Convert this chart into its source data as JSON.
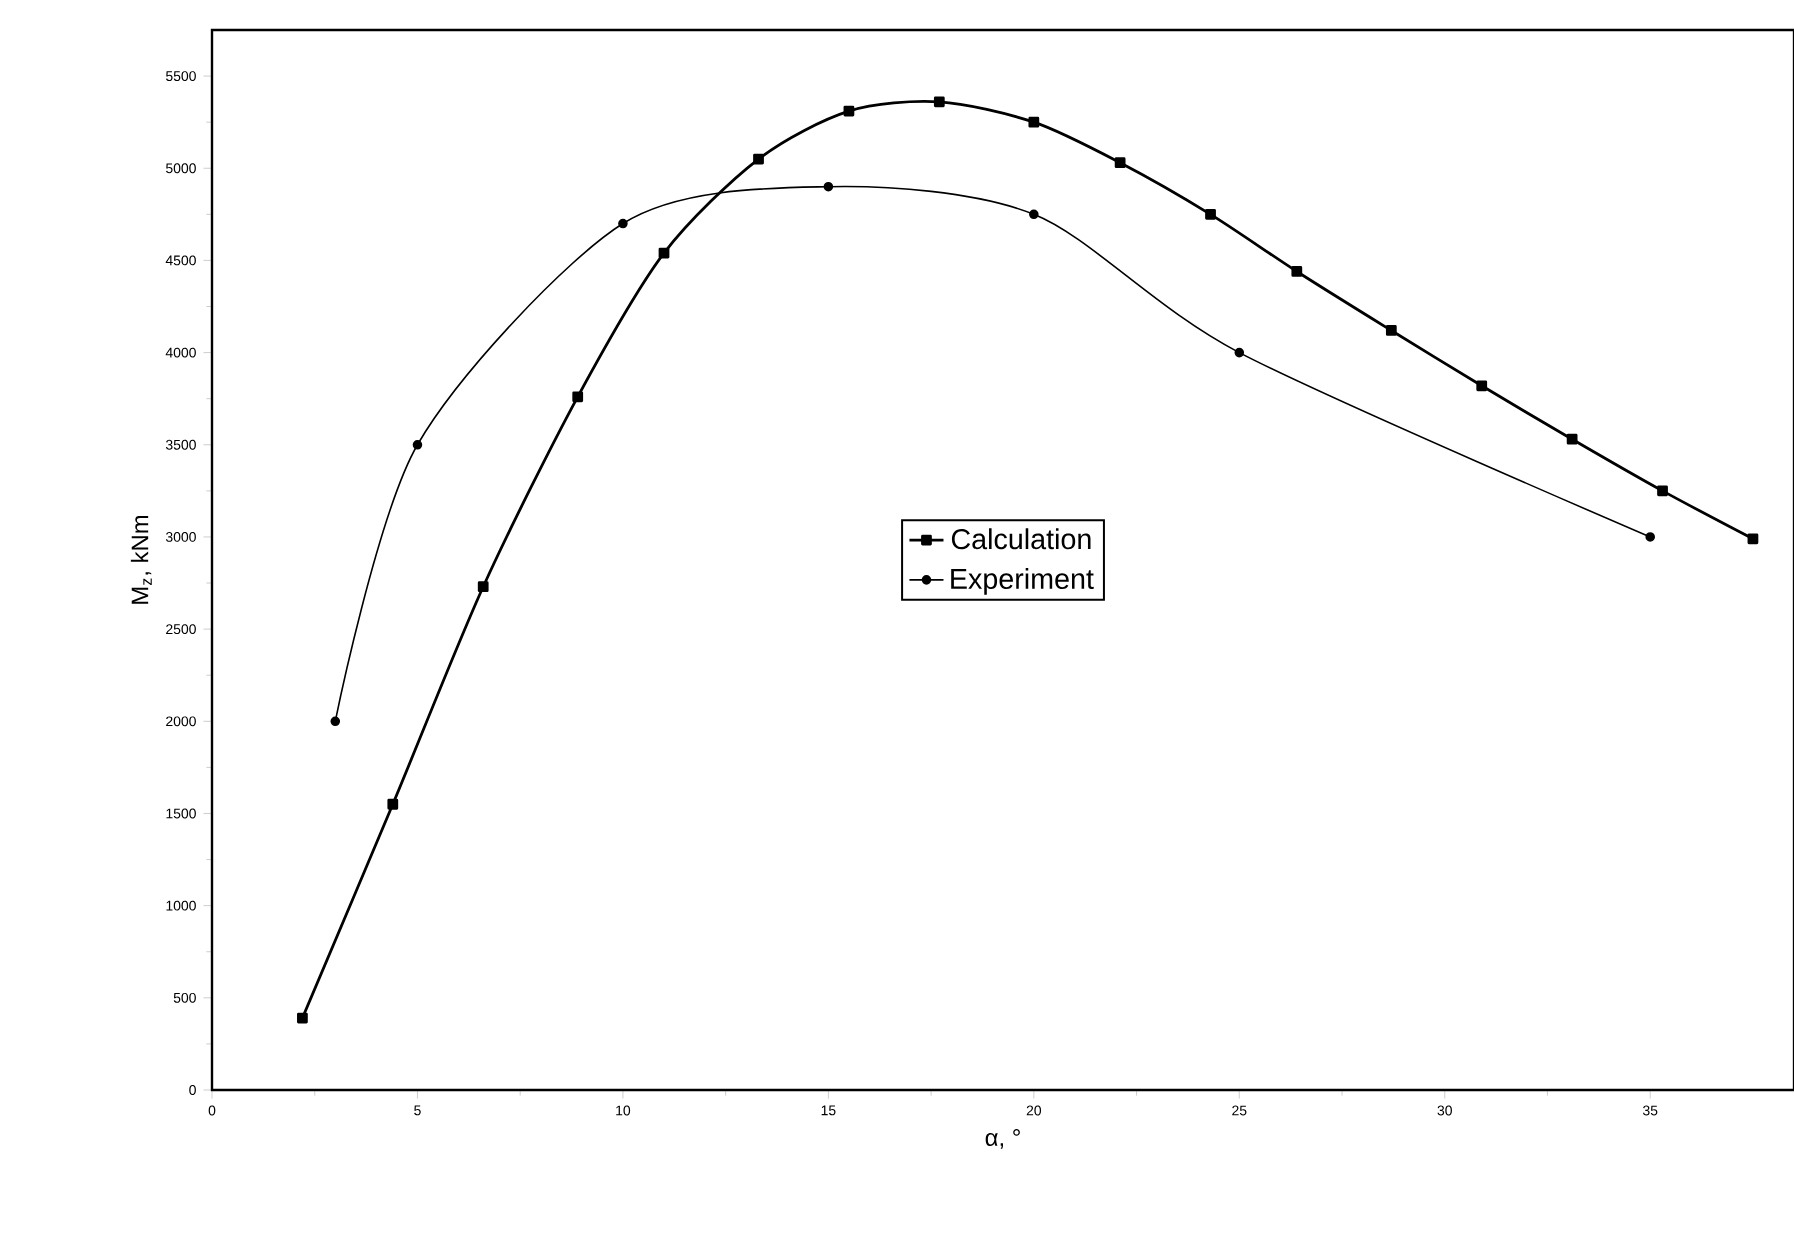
{
  "chart_data": {
    "type": "line",
    "xlabel": "α, °",
    "ylabel": "M$_{z}$, kNm",
    "xlim": [
      0,
      38.5
    ],
    "ylim": [
      0,
      5750
    ],
    "xticks": [
      0,
      5,
      10,
      15,
      20,
      25,
      30,
      35
    ],
    "yticks": [
      0,
      500,
      1000,
      1500,
      2000,
      2500,
      3000,
      3500,
      4000,
      4500,
      5000,
      5500
    ],
    "grid": false,
    "legend": "center",
    "series": [
      {
        "name": "Calculation",
        "color": "#000000",
        "marker": "square",
        "x": [
          2.2,
          4.4,
          6.6,
          8.9,
          11.0,
          13.3,
          15.5,
          17.7,
          20.0,
          22.1,
          24.3,
          26.4,
          28.7,
          30.9,
          33.1,
          35.3,
          37.5
        ],
        "values": [
          390,
          1550,
          2730,
          3760,
          4540,
          5050,
          5310,
          5360,
          5250,
          5030,
          4750,
          4440,
          4120,
          3820,
          3530,
          3250,
          2990
        ]
      },
      {
        "name": "Experiment",
        "color": "#000000",
        "marker": "circle",
        "x": [
          3,
          5,
          10,
          15,
          20,
          25,
          35
        ],
        "values": [
          2000,
          3500,
          4700,
          4900,
          4750,
          4000,
          3000
        ]
      }
    ]
  }
}
